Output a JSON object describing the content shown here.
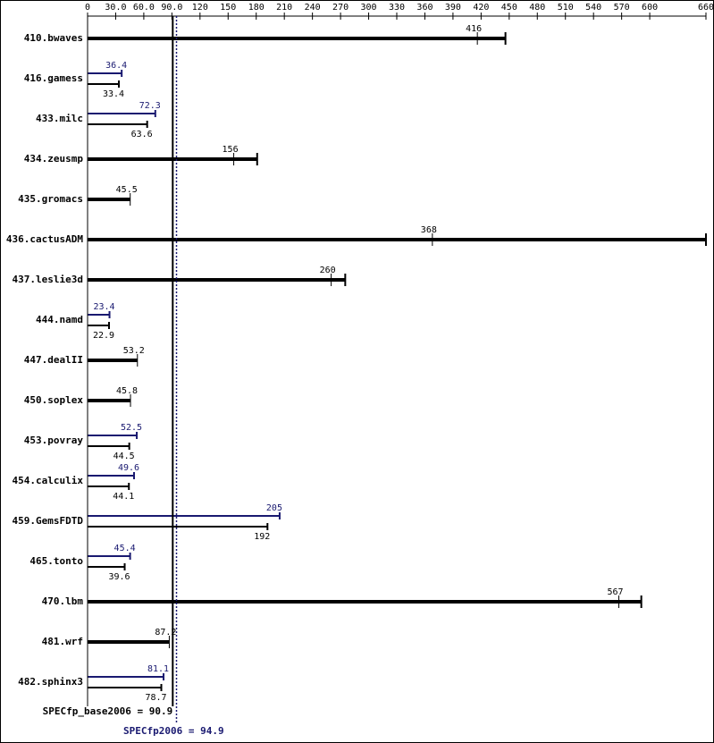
{
  "chart_data": {
    "type": "spec-bar",
    "categories": [
      "410.bwaves",
      "416.gamess",
      "433.milc",
      "434.zeusmp",
      "435.gromacs",
      "436.cactusADM",
      "437.leslie3d",
      "444.namd",
      "447.dealII",
      "450.soplex",
      "453.povray",
      "454.calculix",
      "459.GemsFDTD",
      "465.tonto",
      "470.lbm",
      "481.wrf",
      "482.sphinx3"
    ],
    "base_values": [
      416,
      33.4,
      63.6,
      156,
      45.5,
      368,
      260,
      22.9,
      53.2,
      45.8,
      44.5,
      44.1,
      192,
      39.6,
      567,
      87.2,
      78.7
    ],
    "peak_values": [
      null,
      36.4,
      72.3,
      null,
      null,
      null,
      null,
      23.4,
      null,
      null,
      52.5,
      49.6,
      205,
      45.4,
      null,
      null,
      81.1
    ],
    "base_max": [
      446,
      null,
      null,
      181,
      null,
      660,
      275,
      null,
      null,
      null,
      null,
      null,
      null,
      null,
      591,
      null,
      null
    ],
    "base_color": "#000000",
    "peak_color": "#191970",
    "xlim": [
      0,
      660
    ],
    "xticks": [
      0,
      {
        "value": 30,
        "label": "30.0"
      },
      {
        "value": 60,
        "label": "60.0"
      },
      {
        "value": 90,
        "label": "90.0"
      },
      120,
      150,
      180,
      210,
      240,
      270,
      300,
      330,
      360,
      390,
      420,
      450,
      480,
      510,
      540,
      570,
      600,
      660
    ],
    "base_mean": {
      "value": 90.9,
      "label": "SPECfp_base2006 = 90.9"
    },
    "peak_mean": {
      "value": 94.9,
      "label": "SPECfp2006 = 94.9"
    }
  }
}
